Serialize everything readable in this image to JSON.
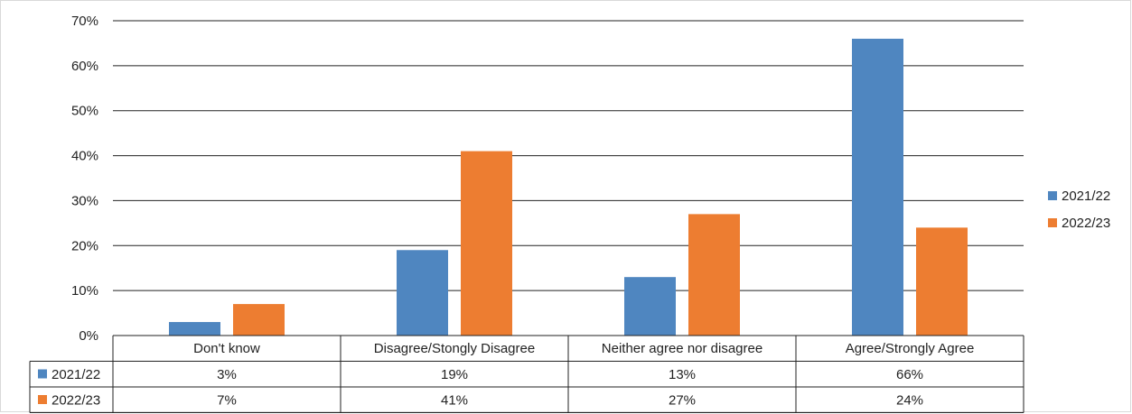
{
  "chart_data": {
    "type": "bar",
    "categories": [
      "Don't know",
      "Disagree/Stongly Disagree",
      "Neither agree nor disagree",
      "Agree/Strongly Agree"
    ],
    "series": [
      {
        "name": "2021/22",
        "values": [
          3,
          19,
          13,
          66
        ],
        "labels": [
          "3%",
          "19%",
          "13%",
          "66%"
        ],
        "color": "#4f86c0"
      },
      {
        "name": "2022/23",
        "values": [
          7,
          41,
          27,
          24
        ],
        "labels": [
          "7%",
          "41%",
          "27%",
          "24%"
        ],
        "color": "#ed7d31"
      }
    ],
    "title": "",
    "xlabel": "",
    "ylabel": "",
    "ylim": [
      0,
      70
    ],
    "yticks": [
      "0%",
      "10%",
      "20%",
      "30%",
      "40%",
      "50%",
      "60%",
      "70%"
    ],
    "grid": true,
    "legend_position": "right",
    "data_table": true
  }
}
